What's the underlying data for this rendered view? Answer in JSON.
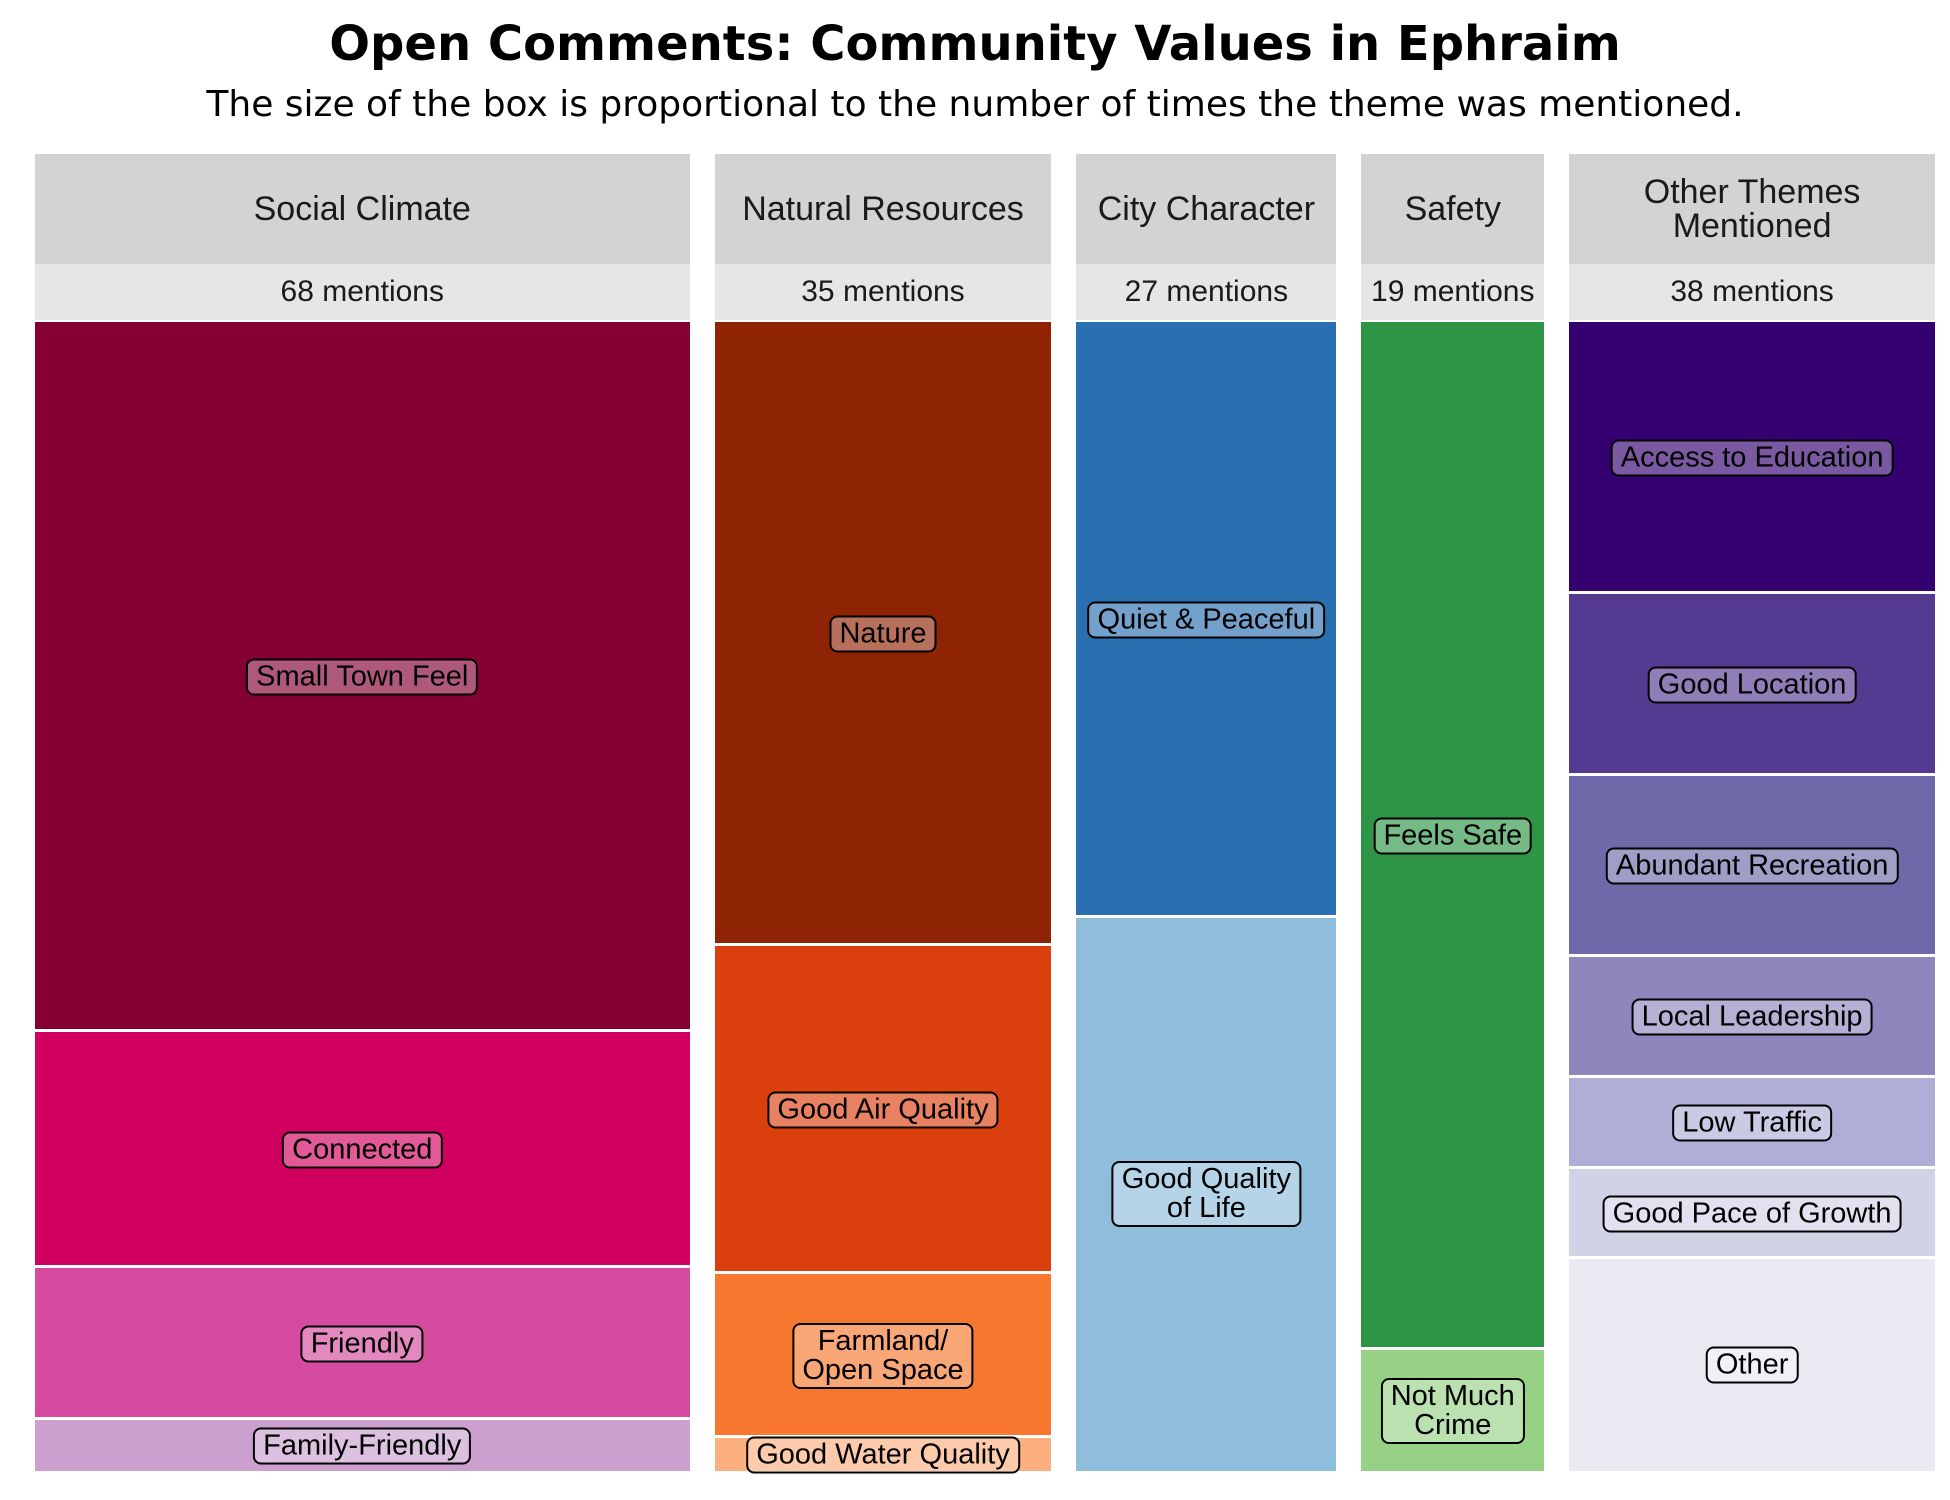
{
  "chart_data": {
    "type": "mosaic",
    "title": "Open Comments: Community Values in Ephraim",
    "subtitle": "The size of the box is proportional to the number of times the theme was mentioned.",
    "groups": [
      {
        "name": "Social Climate",
        "total": 68,
        "total_label": "68 mentions",
        "segments": [
          {
            "name": "Small Town Feel",
            "value": 42,
            "color": "#850033"
          },
          {
            "name": "Connected",
            "value": 14,
            "color": "#d10060"
          },
          {
            "name": "Friendly",
            "value": 9,
            "color": "#d44b9f"
          },
          {
            "name": "Family-Friendly",
            "value": 3,
            "color": "#cba0cf"
          }
        ]
      },
      {
        "name": "Natural Resources",
        "total": 35,
        "total_label": "35 mentions",
        "segments": [
          {
            "name": "Nature",
            "value": 19,
            "color": "#8f2405"
          },
          {
            "name": "Good Air Quality",
            "value": 10,
            "color": "#dc3f0e"
          },
          {
            "name": "Farmland/\nOpen Space",
            "value": 5,
            "color": "#f8782f"
          },
          {
            "name": "Good Water Quality",
            "value": 1,
            "color": "#fcb07f"
          }
        ]
      },
      {
        "name": "City Character",
        "total": 27,
        "total_label": "27 mentions",
        "segments": [
          {
            "name": "Quiet & Peaceful",
            "value": 14,
            "color": "#2a6fb0"
          },
          {
            "name": "Good Quality\nof Life",
            "value": 13,
            "color": "#8fbddc"
          }
        ]
      },
      {
        "name": "Safety",
        "total": 19,
        "total_label": "19 mentions",
        "segments": [
          {
            "name": "Feels Safe",
            "value": 17,
            "color": "#2d9545"
          },
          {
            "name": "Not Much\nCrime",
            "value": 2,
            "color": "#96d185"
          }
        ]
      },
      {
        "name": "Other Themes\nMentioned",
        "total": 38,
        "total_label": "38 mentions",
        "segments": [
          {
            "name": "Access to Education",
            "value": 9,
            "color": "#350070"
          },
          {
            "name": "Good Location",
            "value": 6,
            "color": "#553a92"
          },
          {
            "name": "Abundant Recreation",
            "value": 6,
            "color": "#6e6aaa"
          },
          {
            "name": "Local Leadership",
            "value": 4,
            "color": "#8d87bd"
          },
          {
            "name": "Low Traffic",
            "value": 3,
            "color": "#afaed6"
          },
          {
            "name": "Good Pace of Growth",
            "value": 3,
            "color": "#d2d2e7"
          },
          {
            "name": "Other",
            "value": 7,
            "color": "#ebe8f1"
          }
        ]
      }
    ]
  }
}
